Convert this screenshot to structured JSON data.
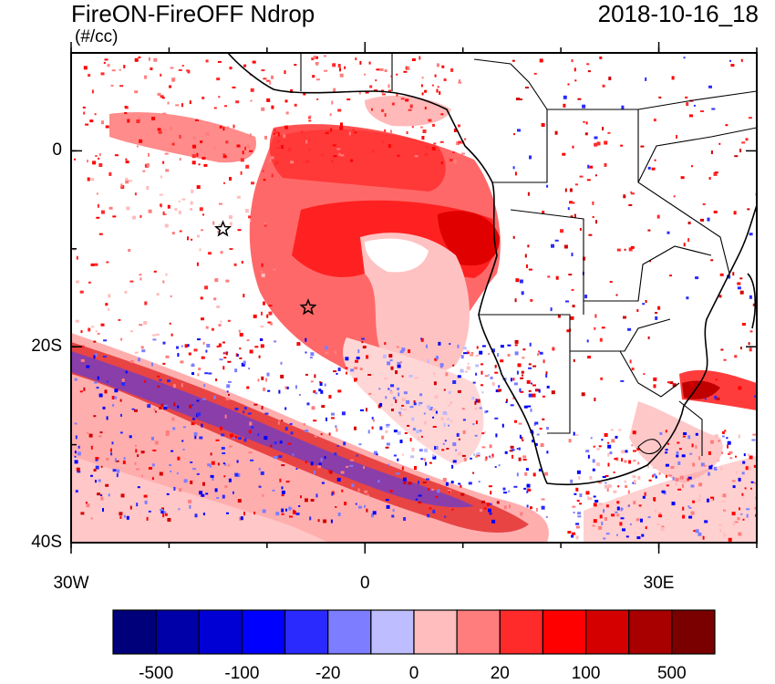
{
  "title": "FireON-FireOFF Ndrop",
  "units": "(#/cc)",
  "datetime": "2018-10-16_18",
  "axes": {
    "lat_ticks": [
      {
        "label": "0",
        "lat": 0
      },
      {
        "label": "20S",
        "lat": -20
      },
      {
        "label": "40S",
        "lat": -40
      }
    ],
    "lon_ticks": [
      {
        "label": "30W",
        "lon": -30
      },
      {
        "label": "0",
        "lon": 0
      },
      {
        "label": "30E",
        "lon": 30
      }
    ],
    "lon_range": [
      -30,
      40
    ],
    "lat_range": [
      -40,
      10
    ]
  },
  "colorbar": {
    "colors": [
      "#00007a",
      "#0000a8",
      "#0000d4",
      "#0000ff",
      "#2a2aff",
      "#7d7dff",
      "#bdbdff",
      "#ffbdbd",
      "#ff7d7d",
      "#ff2a2a",
      "#ff0000",
      "#d40000",
      "#a80000",
      "#7a0000"
    ],
    "labels": [
      {
        "text": "-500",
        "boundary": 1
      },
      {
        "text": "-100",
        "boundary": 3
      },
      {
        "text": "-20",
        "boundary": 5
      },
      {
        "text": "0",
        "boundary": 7
      },
      {
        "text": "20",
        "boundary": 9
      },
      {
        "text": "100",
        "boundary": 11
      },
      {
        "text": "500",
        "boundary": 13
      }
    ]
  },
  "markers": [
    {
      "name": "star-marker-1",
      "lon": -14.5,
      "lat": -8
    },
    {
      "name": "star-marker-2",
      "lon": -5.8,
      "lat": -16
    }
  ]
}
